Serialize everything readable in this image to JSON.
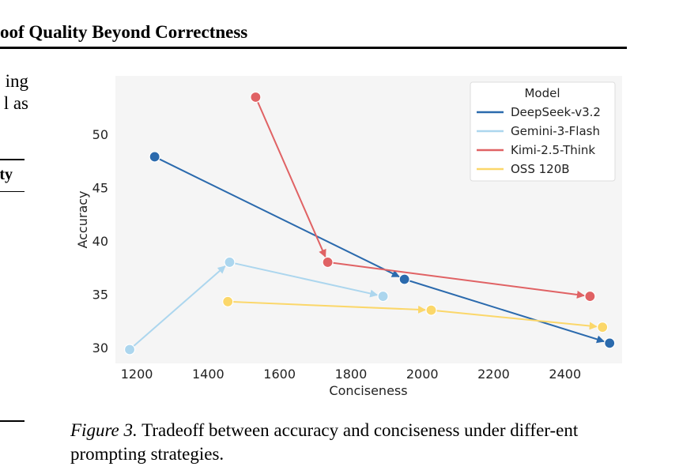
{
  "section_heading": "oof Quality Beyond Correctness",
  "left_fragments": [
    "ing",
    "l as",
    "ty"
  ],
  "caption": {
    "label": "Figure 3.",
    "text": " Tradeoff between accuracy and conciseness under differ-ent prompting strategies."
  },
  "chart_data": {
    "type": "scatter",
    "xlabel": "Conciseness",
    "ylabel": "Accuracy",
    "xlim": [
      1140,
      2560
    ],
    "ylim": [
      28.5,
      55.5
    ],
    "xticks": [
      1200,
      1400,
      1600,
      1800,
      2000,
      2200,
      2400
    ],
    "yticks": [
      30,
      35,
      40,
      45,
      50
    ],
    "grid": false,
    "background": "#f5f5f5",
    "legend": {
      "title": "Model",
      "placement": "top-right"
    },
    "series": [
      {
        "name": "DeepSeek-v3.2",
        "color": "#2b6aad",
        "points": [
          [
            1250,
            47.9
          ],
          [
            1950,
            36.4
          ],
          [
            2525,
            30.4
          ]
        ]
      },
      {
        "name": "Gemini-3-Flash",
        "color": "#acd6ee",
        "points": [
          [
            1180,
            29.8
          ],
          [
            1460,
            38.0
          ],
          [
            1890,
            34.8
          ]
        ]
      },
      {
        "name": "Kimi-2.5-Think",
        "color": "#e06264",
        "points": [
          [
            1533,
            53.5
          ],
          [
            1735,
            38.0
          ],
          [
            2470,
            34.8
          ]
        ]
      },
      {
        "name": "OSS 120B",
        "color": "#fbd76a",
        "points": [
          [
            1455,
            34.3
          ],
          [
            2025,
            33.5
          ],
          [
            2505,
            31.9
          ]
        ]
      }
    ]
  }
}
